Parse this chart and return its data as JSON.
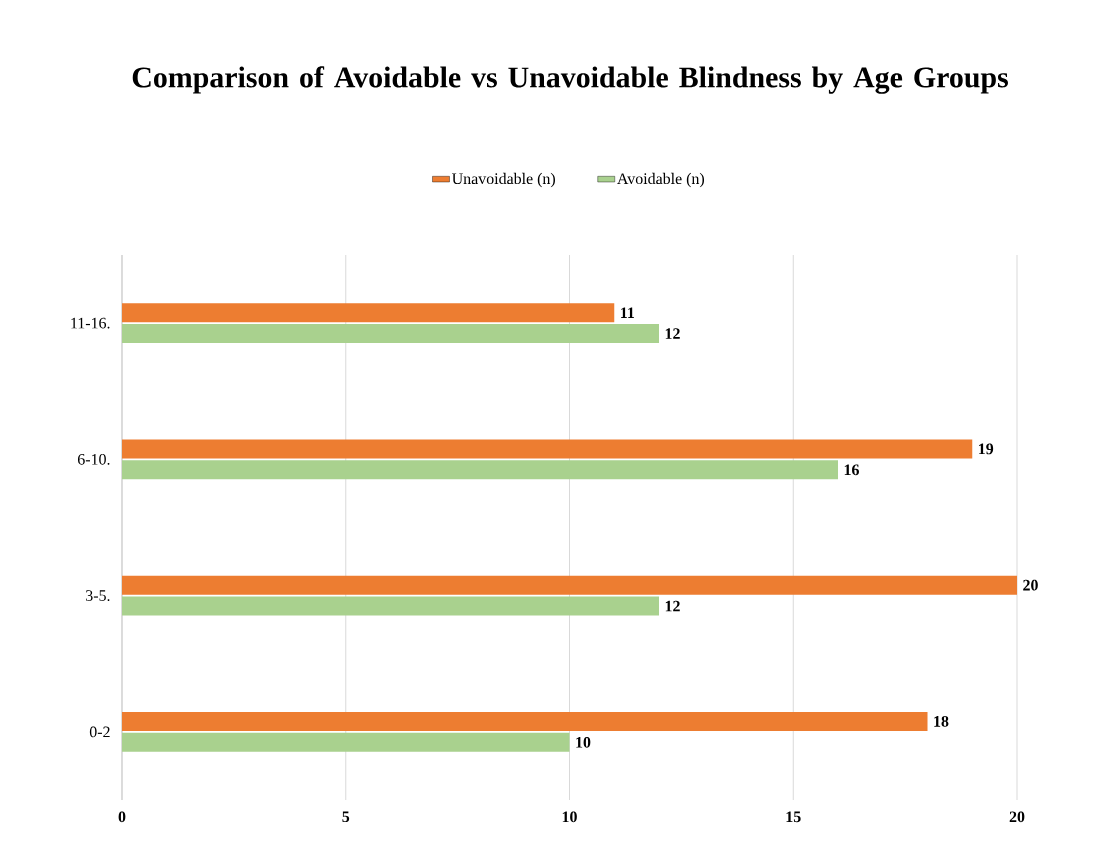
{
  "chart_data": {
    "type": "bar",
    "orientation": "horizontal",
    "title": "Comparison of Avoidable vs Unavoidable Blindness by Age Groups",
    "categories": [
      "11-16.",
      "6-10.",
      "3-5.",
      "0-2"
    ],
    "series": [
      {
        "name": "Unavoidable (n)",
        "color": "#ed7d31",
        "values": [
          11,
          19,
          20,
          18
        ]
      },
      {
        "name": "Avoidable (n)",
        "color": "#a9d18e",
        "values": [
          12,
          16,
          12,
          10
        ]
      }
    ],
    "xlim": [
      0,
      20
    ],
    "xticks": [
      0,
      5,
      10,
      15,
      20
    ],
    "grid": "x",
    "legend": "top",
    "data_labels": true
  }
}
